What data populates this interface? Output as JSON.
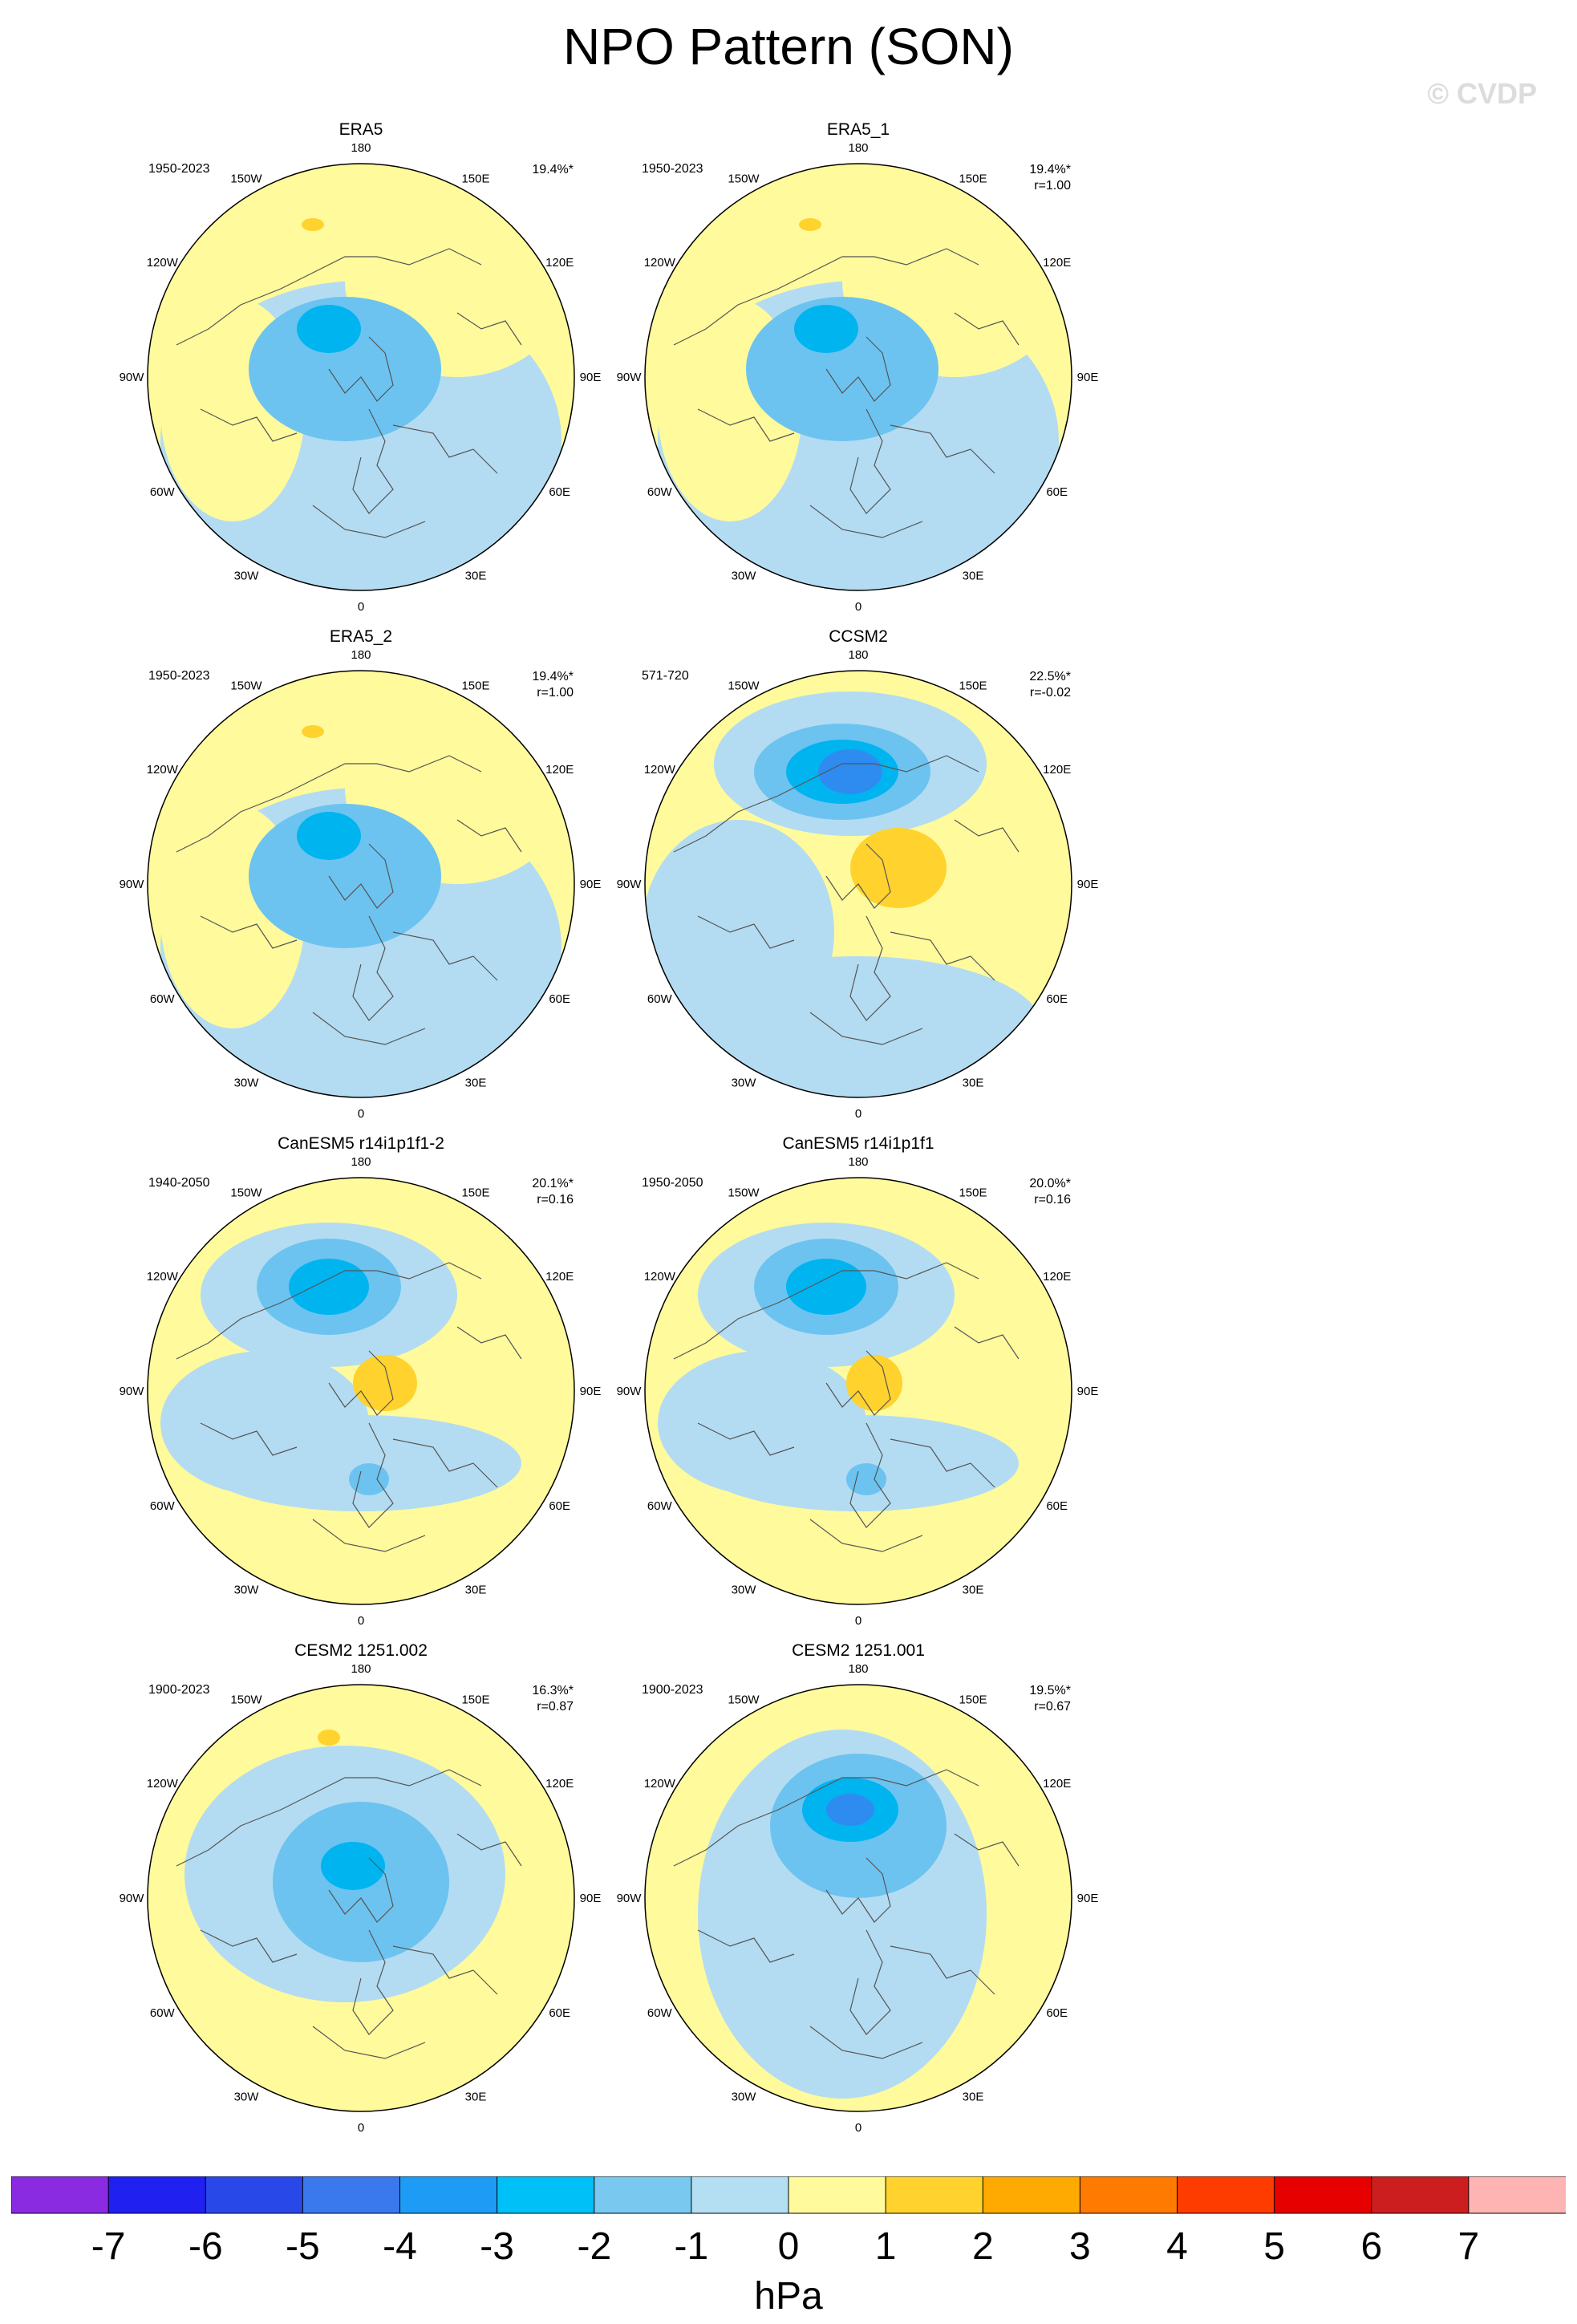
{
  "title": "NPO Pattern (SON)",
  "watermark": "© CVDP",
  "lon_labels": [
    "180",
    "150E",
    "120E",
    "90E",
    "60E",
    "30E",
    "0",
    "30W",
    "60W",
    "90W",
    "120W",
    "150W"
  ],
  "colors": {
    "land_outline": "#555555",
    "neg1": "#b3dcf2",
    "neg2": "#6cc3f0",
    "neg3": "#00b4f0",
    "neg4": "#2e8cf0",
    "pos1": "#fffa9c",
    "pos2": "#ffd22e"
  },
  "panels": [
    {
      "name": "ERA5",
      "period": "1950-2023",
      "pct": "19.4%*",
      "r": ""
    },
    {
      "name": "ERA5_1",
      "period": "1950-2023",
      "pct": "19.4%*",
      "r": "r=1.00"
    },
    {
      "name": "ERA5_2",
      "period": "1950-2023",
      "pct": "19.4%*",
      "r": "r=1.00"
    },
    {
      "name": "CCSM2",
      "period": "571-720",
      "pct": "22.5%*",
      "r": "r=-0.02"
    },
    {
      "name": "CanESM5 r14i1p1f1-2",
      "period": "1940-2050",
      "pct": "20.1%*",
      "r": "r=0.16"
    },
    {
      "name": "CanESM5 r14i1p1f1",
      "period": "1950-2050",
      "pct": "20.0%*",
      "r": "r=0.16"
    },
    {
      "name": "CESM2 1251.002",
      "period": "1900-2023",
      "pct": "16.3%*",
      "r": "r=0.87"
    },
    {
      "name": "CESM2 1251.001",
      "period": "1900-2023",
      "pct": "19.5%*",
      "r": "r=0.67"
    }
  ],
  "colorbar": {
    "colors": [
      "#8a2be2",
      "#2020f0",
      "#2848e8",
      "#3a78ee",
      "#1e9cf5",
      "#00c0f8",
      "#78c8f0",
      "#b4def2",
      "#fffa9c",
      "#ffd22e",
      "#ffaa00",
      "#ff7a00",
      "#ff3c00",
      "#e60000",
      "#cc1e1e",
      "#ffb4b4"
    ],
    "ticks": [
      "-7",
      "-6",
      "-5",
      "-4",
      "-3",
      "-2",
      "-1",
      "0",
      "1",
      "2",
      "3",
      "4",
      "5",
      "6",
      "7"
    ],
    "units": "hPa"
  }
}
